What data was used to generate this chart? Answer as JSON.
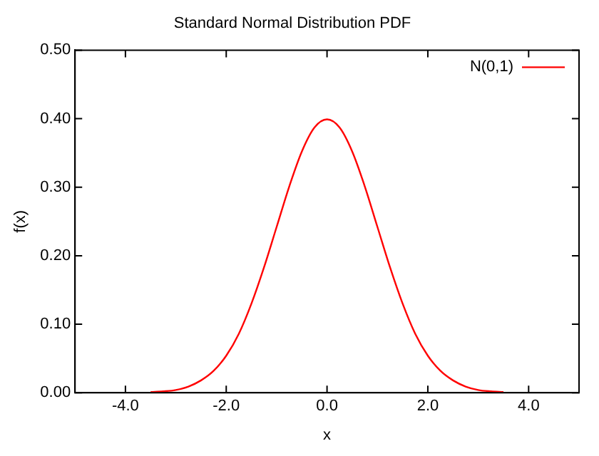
{
  "chart_data": {
    "type": "line",
    "title": "Standard Normal Distribution PDF",
    "xlabel": "x",
    "ylabel": "f(x)",
    "x": [
      -3.5,
      -3.25,
      -3.0,
      -2.75,
      -2.5,
      -2.25,
      -2.0,
      -1.75,
      -1.5,
      -1.25,
      -1.0,
      -0.75,
      -0.5,
      -0.25,
      0.0,
      0.25,
      0.5,
      0.75,
      1.0,
      1.25,
      1.5,
      1.75,
      2.0,
      2.25,
      2.5,
      2.75,
      3.0,
      3.25,
      3.5
    ],
    "series": [
      {
        "name": "N(0,1)",
        "color": "#ff0000",
        "values": [
          0.001,
          0.002,
          0.004,
          0.009,
          0.018,
          0.032,
          0.054,
          0.086,
          0.13,
          0.183,
          0.242,
          0.301,
          0.352,
          0.387,
          0.399,
          0.387,
          0.352,
          0.301,
          0.242,
          0.183,
          0.13,
          0.086,
          0.054,
          0.032,
          0.018,
          0.009,
          0.004,
          0.002,
          0.001
        ]
      }
    ],
    "xlim": [
      -5,
      5
    ],
    "xticks": [
      {
        "value": -4,
        "label": "-4.0"
      },
      {
        "value": -2,
        "label": "-2.0"
      },
      {
        "value": 0,
        "label": "0.0"
      },
      {
        "value": 2,
        "label": "2.0"
      },
      {
        "value": 4,
        "label": "4.0"
      }
    ],
    "ylim": [
      0,
      0.5
    ],
    "yticks": [
      {
        "value": 0,
        "label": "0.00"
      },
      {
        "value": 0.1,
        "label": "0.10"
      },
      {
        "value": 0.2,
        "label": "0.20"
      },
      {
        "value": 0.3,
        "label": "0.30"
      },
      {
        "value": 0.4,
        "label": "0.40"
      },
      {
        "value": 0.5,
        "label": "0.50"
      }
    ],
    "grid": false,
    "legend": "top right",
    "marker": "none",
    "line_style": "solid"
  }
}
